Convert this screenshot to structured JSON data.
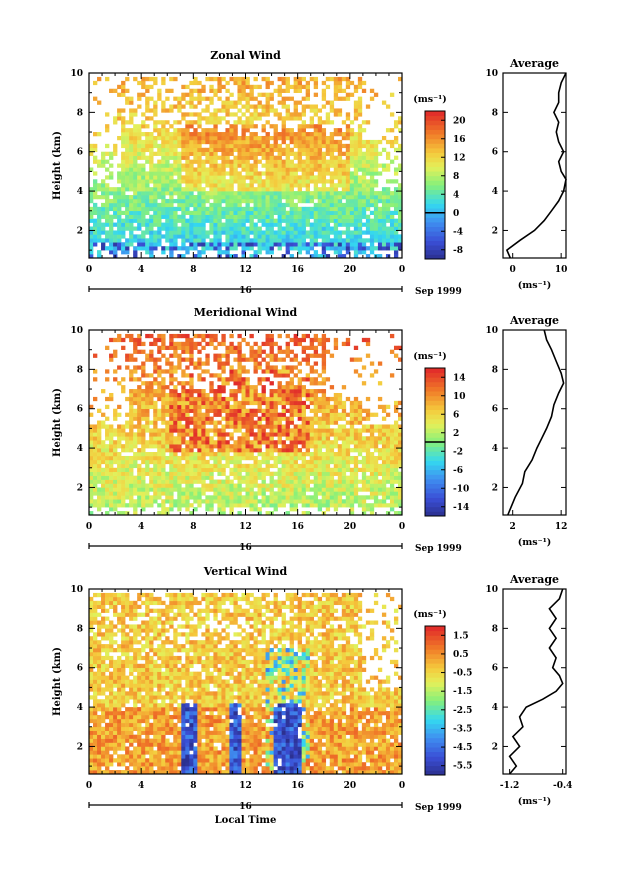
{
  "chart_data": [
    {
      "type": "heatmap",
      "title": "Zonal Wind",
      "ylabel": "Height (km)",
      "xlabel": "",
      "ylim": [
        0.6,
        10
      ],
      "yticks": [
        "2",
        "4",
        "6",
        "8",
        "10"
      ],
      "xlim": [
        0,
        24
      ],
      "xticks": [
        "0",
        "4",
        "8",
        "12",
        "16",
        "20",
        "0"
      ],
      "date_label": "16",
      "month_label": "Sep 1999",
      "colorbar": {
        "unit": "(ms⁻¹)",
        "range": [
          -10,
          22
        ],
        "ticks": [
          "20",
          "16",
          "12",
          "8",
          "4",
          "0",
          "-4",
          "-8"
        ],
        "zero_line": 0
      },
      "values": [
        {
          "height_km": 1.0,
          "value": -6,
          "period": "00-24"
        },
        {
          "height_km": 2.0,
          "value": 2,
          "period": "00-24"
        },
        {
          "height_km": 3.0,
          "value": 6,
          "period": "00-24"
        },
        {
          "height_km": 4.0,
          "value": 9,
          "period": "04-20"
        },
        {
          "height_km": 5.0,
          "value": 12,
          "period": "08-20"
        },
        {
          "height_km": 6.0,
          "value": 11,
          "period": "08-18"
        },
        {
          "height_km": 7.0,
          "value": 9,
          "period": "04-20"
        },
        {
          "height_km": 8.0,
          "value": 8,
          "period": "04-18"
        },
        {
          "height_km": 9.0,
          "value": 8,
          "period": "02-14"
        }
      ],
      "profile": {
        "title": "Average",
        "xlabel": "(ms⁻¹)",
        "xlim": [
          -2,
          11
        ],
        "xticks": [
          "0",
          "10"
        ],
        "yticks": [
          "2",
          "4",
          "6",
          "8",
          "10"
        ],
        "points": [
          {
            "x": -0.5,
            "y": 0.6
          },
          {
            "x": -1.2,
            "y": 1.0
          },
          {
            "x": 1.5,
            "y": 1.5
          },
          {
            "x": 4.5,
            "y": 2.0
          },
          {
            "x": 6.5,
            "y": 2.5
          },
          {
            "x": 8.0,
            "y": 3.0
          },
          {
            "x": 9.5,
            "y": 3.5
          },
          {
            "x": 10.5,
            "y": 4.0
          },
          {
            "x": 11.0,
            "y": 4.6
          },
          {
            "x": 10.0,
            "y": 5.0
          },
          {
            "x": 9.5,
            "y": 5.5
          },
          {
            "x": 10.5,
            "y": 6.0
          },
          {
            "x": 9.5,
            "y": 6.5
          },
          {
            "x": 9.0,
            "y": 7.0
          },
          {
            "x": 9.5,
            "y": 7.5
          },
          {
            "x": 8.5,
            "y": 8.0
          },
          {
            "x": 9.5,
            "y": 8.5
          },
          {
            "x": 9.5,
            "y": 9.0
          },
          {
            "x": 10.0,
            "y": 9.5
          },
          {
            "x": 11.0,
            "y": 10.0
          }
        ]
      }
    },
    {
      "type": "heatmap",
      "title": "Meridional Wind",
      "ylabel": "Height (km)",
      "xlabel": "",
      "ylim": [
        0.6,
        10
      ],
      "yticks": [
        "2",
        "4",
        "6",
        "8",
        "10"
      ],
      "xlim": [
        0,
        24
      ],
      "xticks": [
        "0",
        "4",
        "8",
        "12",
        "16",
        "20",
        "0"
      ],
      "date_label": "16",
      "month_label": "Sep 1999",
      "colorbar": {
        "unit": "(ms⁻¹)",
        "range": [
          -16,
          16
        ],
        "ticks": [
          "14",
          "10",
          "6",
          "2",
          "-2",
          "-6",
          "-10",
          "-14"
        ],
        "zero_line": 0
      },
      "values": [
        {
          "height_km": 1.5,
          "value": 2,
          "period": "00-24"
        },
        {
          "height_km": 2.5,
          "value": 4,
          "period": "00-24"
        },
        {
          "height_km": 3.5,
          "value": 7,
          "period": "00-24"
        },
        {
          "height_km": 4.5,
          "value": 10,
          "period": "04-20"
        },
        {
          "height_km": 5.5,
          "value": 13,
          "period": "06-18"
        },
        {
          "height_km": 6.5,
          "value": 12,
          "period": "06-16"
        },
        {
          "height_km": 7.5,
          "value": 9,
          "period": "04-16"
        },
        {
          "height_km": 8.5,
          "value": 8,
          "period": "02-14"
        }
      ],
      "profile": {
        "title": "Average",
        "xlabel": "(ms⁻¹)",
        "xlim": [
          0,
          13
        ],
        "xticks": [
          "2",
          "12"
        ],
        "yticks": [
          "2",
          "4",
          "6",
          "8",
          "10"
        ],
        "points": [
          {
            "x": 1.0,
            "y": 0.6
          },
          {
            "x": 2.5,
            "y": 1.5
          },
          {
            "x": 4.0,
            "y": 2.2
          },
          {
            "x": 4.5,
            "y": 2.8
          },
          {
            "x": 6.0,
            "y": 3.4
          },
          {
            "x": 7.0,
            "y": 4.0
          },
          {
            "x": 8.0,
            "y": 4.5
          },
          {
            "x": 9.0,
            "y": 5.0
          },
          {
            "x": 10.0,
            "y": 5.6
          },
          {
            "x": 10.5,
            "y": 6.2
          },
          {
            "x": 11.5,
            "y": 6.8
          },
          {
            "x": 12.5,
            "y": 7.3
          },
          {
            "x": 12.0,
            "y": 7.8
          },
          {
            "x": 11.0,
            "y": 8.4
          },
          {
            "x": 10.0,
            "y": 9.0
          },
          {
            "x": 9.0,
            "y": 9.5
          },
          {
            "x": 8.5,
            "y": 10.0
          }
        ]
      }
    },
    {
      "type": "heatmap",
      "title": "Vertical Wind",
      "ylabel": "Height (km)",
      "xlabel": "Local Time",
      "ylim": [
        0.6,
        10
      ],
      "yticks": [
        "2",
        "4",
        "6",
        "8",
        "10"
      ],
      "xlim": [
        0,
        24
      ],
      "xticks": [
        "0",
        "4",
        "8",
        "12",
        "16",
        "20",
        "0"
      ],
      "date_label": "16",
      "month_label": "Sep 1999",
      "colorbar": {
        "unit": "(ms⁻¹)",
        "range": [
          -6,
          2
        ],
        "ticks": [
          "1.5",
          "0.5",
          "-0.5",
          "-1.5",
          "-2.5",
          "-3.5",
          "-4.5",
          "-5.5"
        ],
        "zero_line": null
      },
      "values": [
        {
          "height_km": 2.0,
          "value": 0.5,
          "period": "00-24"
        },
        {
          "height_km": 3.0,
          "value": 0.5,
          "period": "00-24"
        },
        {
          "height_km": 5.0,
          "value": -0.5,
          "period": "04-20"
        },
        {
          "height_km": 7.0,
          "value": -0.5,
          "period": "02-22"
        },
        {
          "height_km": 9.0,
          "value": -0.5,
          "period": "00-20"
        },
        {
          "height_km": 2.5,
          "value": -5.5,
          "period": "07-08"
        },
        {
          "height_km": 2.5,
          "value": -5.5,
          "period": "11-12"
        },
        {
          "height_km": 2.5,
          "value": -5.5,
          "period": "14-16"
        }
      ],
      "profile": {
        "title": "Average",
        "xlabel": "(ms⁻¹)",
        "xlim": [
          -1.3,
          -0.35
        ],
        "xticks": [
          "-1.2",
          "-0.4"
        ],
        "yticks": [
          "2",
          "4",
          "6",
          "8",
          "10"
        ],
        "points": [
          {
            "x": -1.2,
            "y": 0.6
          },
          {
            "x": -1.1,
            "y": 1.0
          },
          {
            "x": -1.2,
            "y": 1.5
          },
          {
            "x": -1.05,
            "y": 2.0
          },
          {
            "x": -1.15,
            "y": 2.5
          },
          {
            "x": -1.0,
            "y": 3.0
          },
          {
            "x": -1.05,
            "y": 3.5
          },
          {
            "x": -0.95,
            "y": 4.0
          },
          {
            "x": -0.7,
            "y": 4.4
          },
          {
            "x": -0.5,
            "y": 4.8
          },
          {
            "x": -0.4,
            "y": 5.2
          },
          {
            "x": -0.45,
            "y": 5.6
          },
          {
            "x": -0.55,
            "y": 6.0
          },
          {
            "x": -0.5,
            "y": 6.5
          },
          {
            "x": -0.6,
            "y": 7.0
          },
          {
            "x": -0.5,
            "y": 7.5
          },
          {
            "x": -0.6,
            "y": 8.0
          },
          {
            "x": -0.5,
            "y": 8.5
          },
          {
            "x": -0.6,
            "y": 9.0
          },
          {
            "x": -0.45,
            "y": 9.5
          },
          {
            "x": -0.4,
            "y": 10.0
          }
        ]
      }
    }
  ]
}
